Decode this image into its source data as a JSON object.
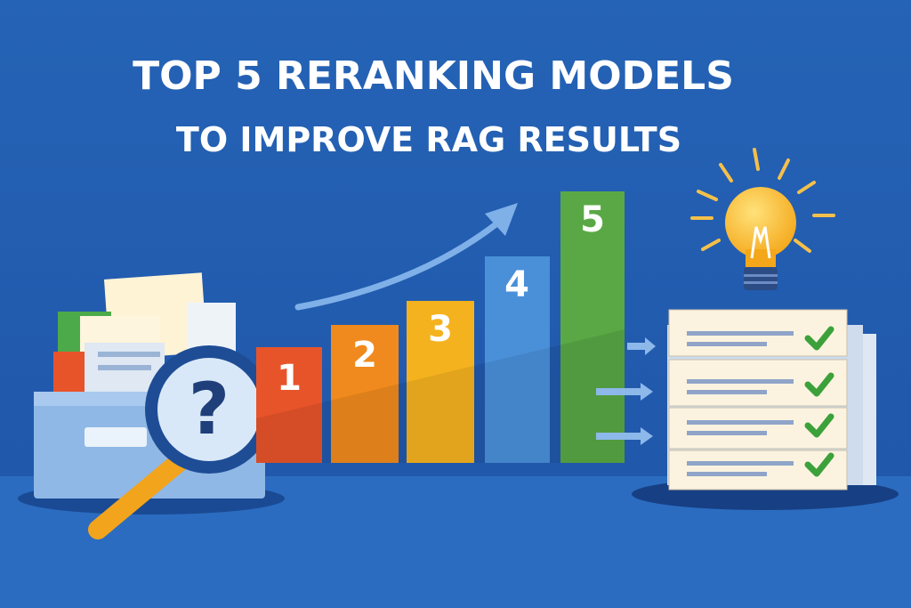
{
  "header": {
    "title": "TOP 5 RERANKING MODELS",
    "subtitle": "TO IMPROVE RAG RESULTS"
  },
  "bars": [
    {
      "label": "1"
    },
    {
      "label": "2"
    },
    {
      "label": "3"
    },
    {
      "label": "4"
    },
    {
      "label": "5"
    }
  ],
  "magnifier": {
    "label": "?"
  }
}
